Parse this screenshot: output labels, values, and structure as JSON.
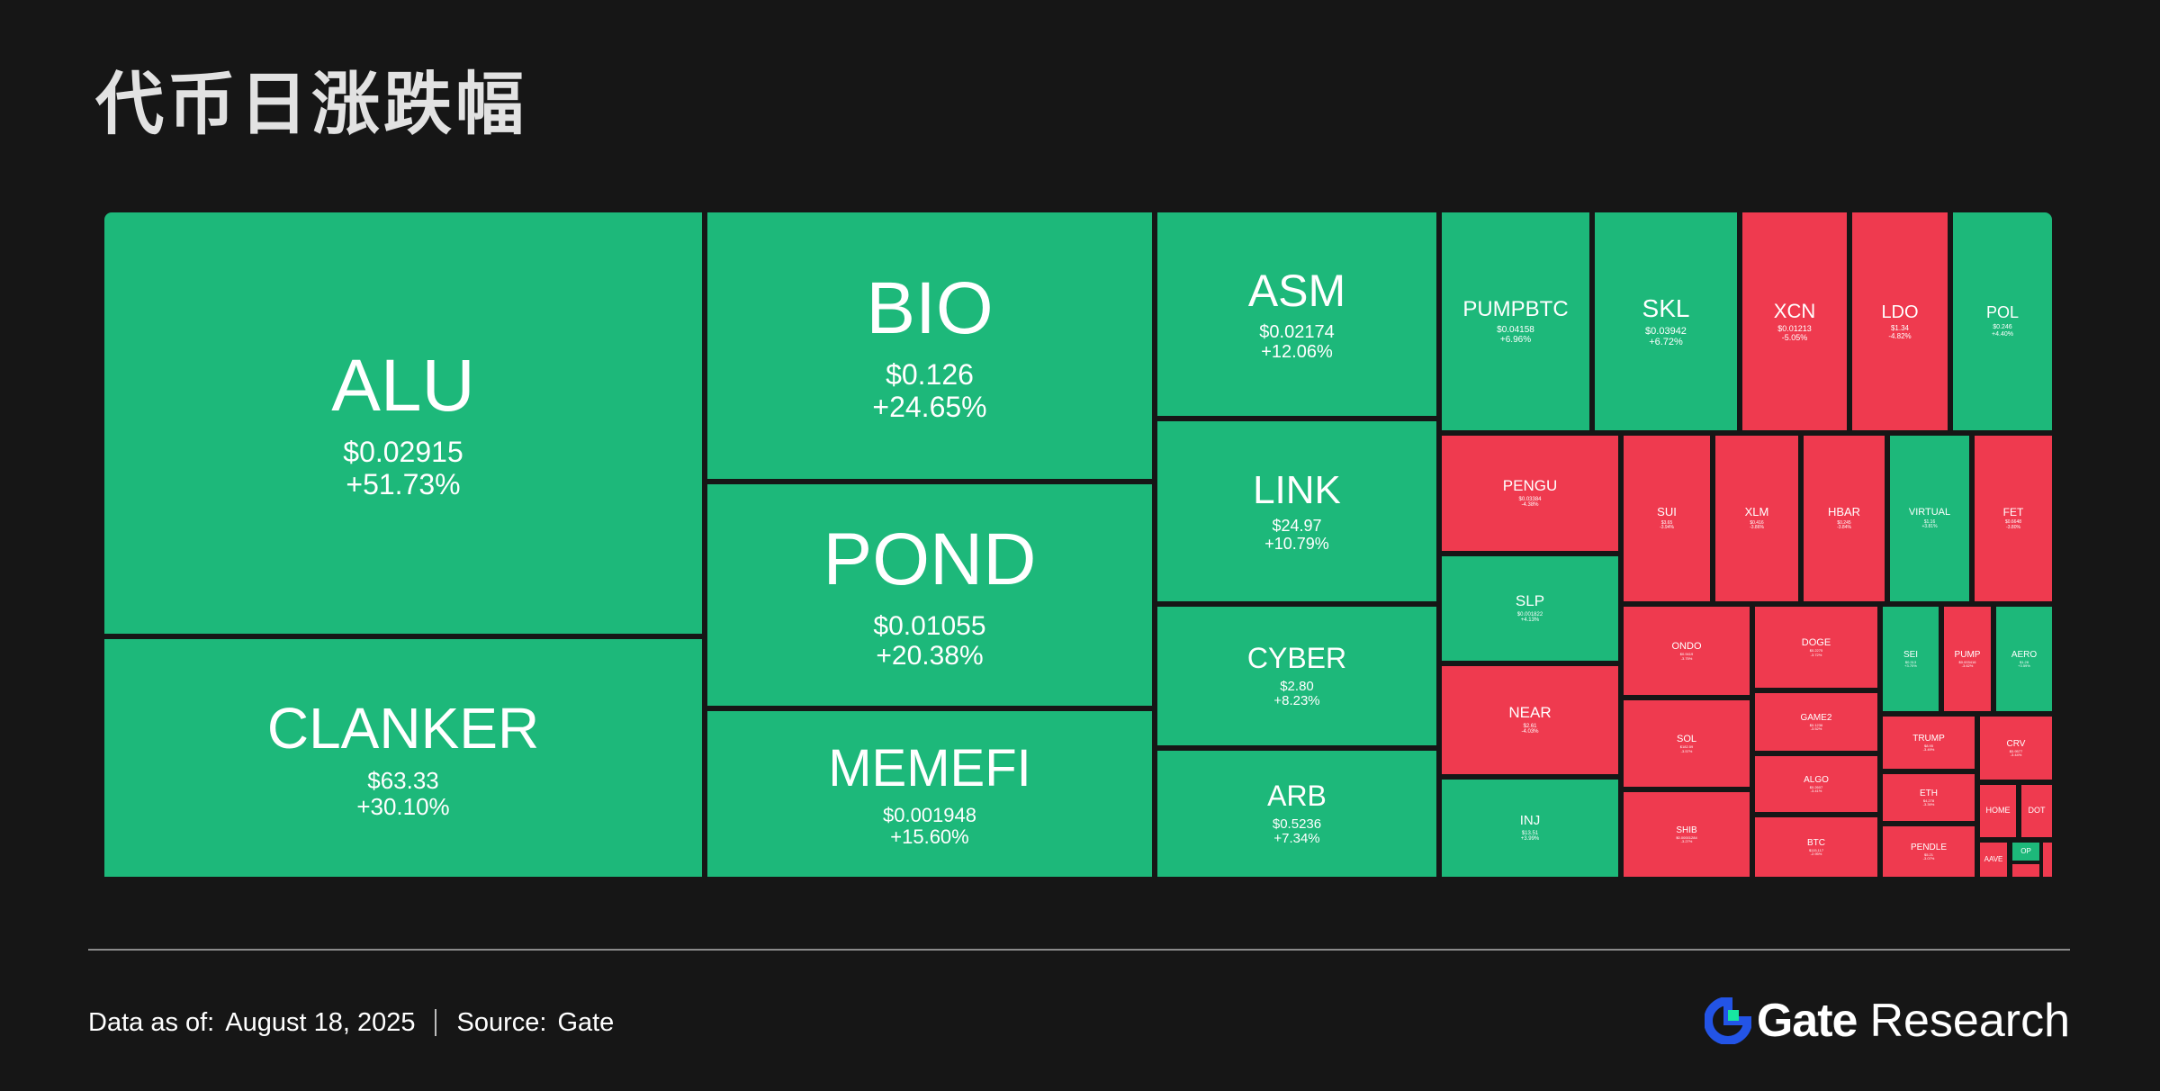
{
  "title": "代币日涨跌幅",
  "footer": {
    "data_as_of_label": "Data as of:",
    "date": "August 18, 2025",
    "source_label": "Source:",
    "source": "Gate",
    "brand_name": "Gate",
    "brand_suffix": "Research"
  },
  "colors": {
    "background": "#161616",
    "up": "#1db87a",
    "down": "#ef3a4f",
    "text": "#ffffff"
  },
  "chart_data": {
    "type": "treemap",
    "title": "代币日涨跌幅",
    "tiles": [
      {
        "symbol": "ALU",
        "price": "$0.02915",
        "change": "+51.73%",
        "direction": "up"
      },
      {
        "symbol": "CLANKER",
        "price": "$63.33",
        "change": "+30.10%",
        "direction": "up"
      },
      {
        "symbol": "BIO",
        "price": "$0.126",
        "change": "+24.65%",
        "direction": "up"
      },
      {
        "symbol": "POND",
        "price": "$0.01055",
        "change": "+20.38%",
        "direction": "up"
      },
      {
        "symbol": "MEMEFI",
        "price": "$0.001948",
        "change": "+15.60%",
        "direction": "up"
      },
      {
        "symbol": "ASM",
        "price": "$0.02174",
        "change": "+12.06%",
        "direction": "up"
      },
      {
        "symbol": "LINK",
        "price": "$24.97",
        "change": "+10.79%",
        "direction": "up"
      },
      {
        "symbol": "CYBER",
        "price": "$2.80",
        "change": "+8.23%",
        "direction": "up"
      },
      {
        "symbol": "ARB",
        "price": "$0.5236",
        "change": "+7.34%",
        "direction": "up"
      },
      {
        "symbol": "PUMPBTC",
        "price": "$0.04158",
        "change": "+6.96%",
        "direction": "up"
      },
      {
        "symbol": "SKL",
        "price": "$0.03942",
        "change": "+6.72%",
        "direction": "up"
      },
      {
        "symbol": "XCN",
        "price": "$0.01213",
        "change": "-5.05%",
        "direction": "down"
      },
      {
        "symbol": "LDO",
        "price": "$1.34",
        "change": "-4.82%",
        "direction": "down"
      },
      {
        "symbol": "POL",
        "price": "$0.246",
        "change": "+4.40%",
        "direction": "up"
      },
      {
        "symbol": "PENGU",
        "price": "$0.03384",
        "change": "-4.38%",
        "direction": "down"
      },
      {
        "symbol": "SLP",
        "price": "$0.001822",
        "change": "+4.13%",
        "direction": "up"
      },
      {
        "symbol": "NEAR",
        "price": "$2.61",
        "change": "-4.03%",
        "direction": "down"
      },
      {
        "symbol": "INJ",
        "price": "$13.51",
        "change": "+3.99%",
        "direction": "up"
      },
      {
        "symbol": "SUI",
        "price": "$3.65",
        "change": "-3.94%",
        "direction": "down"
      },
      {
        "symbol": "XLM",
        "price": "$0.416",
        "change": "-3.86%",
        "direction": "down"
      },
      {
        "symbol": "HBAR",
        "price": "$0.245",
        "change": "-3.84%",
        "direction": "down"
      },
      {
        "symbol": "VIRTUAL",
        "price": "$1.16",
        "change": "+3.81%",
        "direction": "up"
      },
      {
        "symbol": "FET",
        "price": "$0.6648",
        "change": "-3.80%",
        "direction": "down"
      },
      {
        "symbol": "ONDO",
        "price": "$0.9419",
        "change": "-3.75%",
        "direction": "down"
      },
      {
        "symbol": "DOGE",
        "price": "$0.2275",
        "change": "-3.72%",
        "direction": "down"
      },
      {
        "symbol": "SEI",
        "price": "$0.313",
        "change": "+3.70%",
        "direction": "up"
      },
      {
        "symbol": "PUMP",
        "price": "$0.003416",
        "change": "-3.62%",
        "direction": "down"
      },
      {
        "symbol": "AERO",
        "price": "$1.28",
        "change": "+3.59%",
        "direction": "up"
      },
      {
        "symbol": "SOL",
        "price": "$182.59",
        "change": "-3.57%",
        "direction": "down"
      },
      {
        "symbol": "GAME2",
        "price": "$0.1236",
        "change": "-3.52%",
        "direction": "down"
      },
      {
        "symbol": "TRUMP",
        "price": "$8.95",
        "change": "-3.49%",
        "direction": "down"
      },
      {
        "symbol": "CRV",
        "price": "$0.9577",
        "change": "-3.44%",
        "direction": "down"
      },
      {
        "symbol": "ALGO",
        "price": "$0.2607",
        "change": "-3.41%",
        "direction": "down"
      },
      {
        "symbol": "ETH",
        "price": "$4,278",
        "change": "-3.39%",
        "direction": "down"
      },
      {
        "symbol": "HOME",
        "price": "",
        "change": "",
        "direction": "down"
      },
      {
        "symbol": "DOT",
        "price": "",
        "change": "",
        "direction": "down"
      },
      {
        "symbol": "SHIB",
        "price": "$0.00001284",
        "change": "-3.27%",
        "direction": "down"
      },
      {
        "symbol": "BTC",
        "price": "$115,117",
        "change": "-2.95%",
        "direction": "down"
      },
      {
        "symbol": "PENDLE",
        "price": "$5.21",
        "change": "-3.07%",
        "direction": "down"
      },
      {
        "symbol": "AAVE",
        "price": "",
        "change": "",
        "direction": "down"
      },
      {
        "symbol": "OP",
        "price": "",
        "change": "",
        "direction": "up"
      },
      {
        "symbol": "",
        "price": "",
        "change": "",
        "direction": "down"
      },
      {
        "symbol": "",
        "price": "",
        "change": "",
        "direction": "down"
      }
    ]
  }
}
